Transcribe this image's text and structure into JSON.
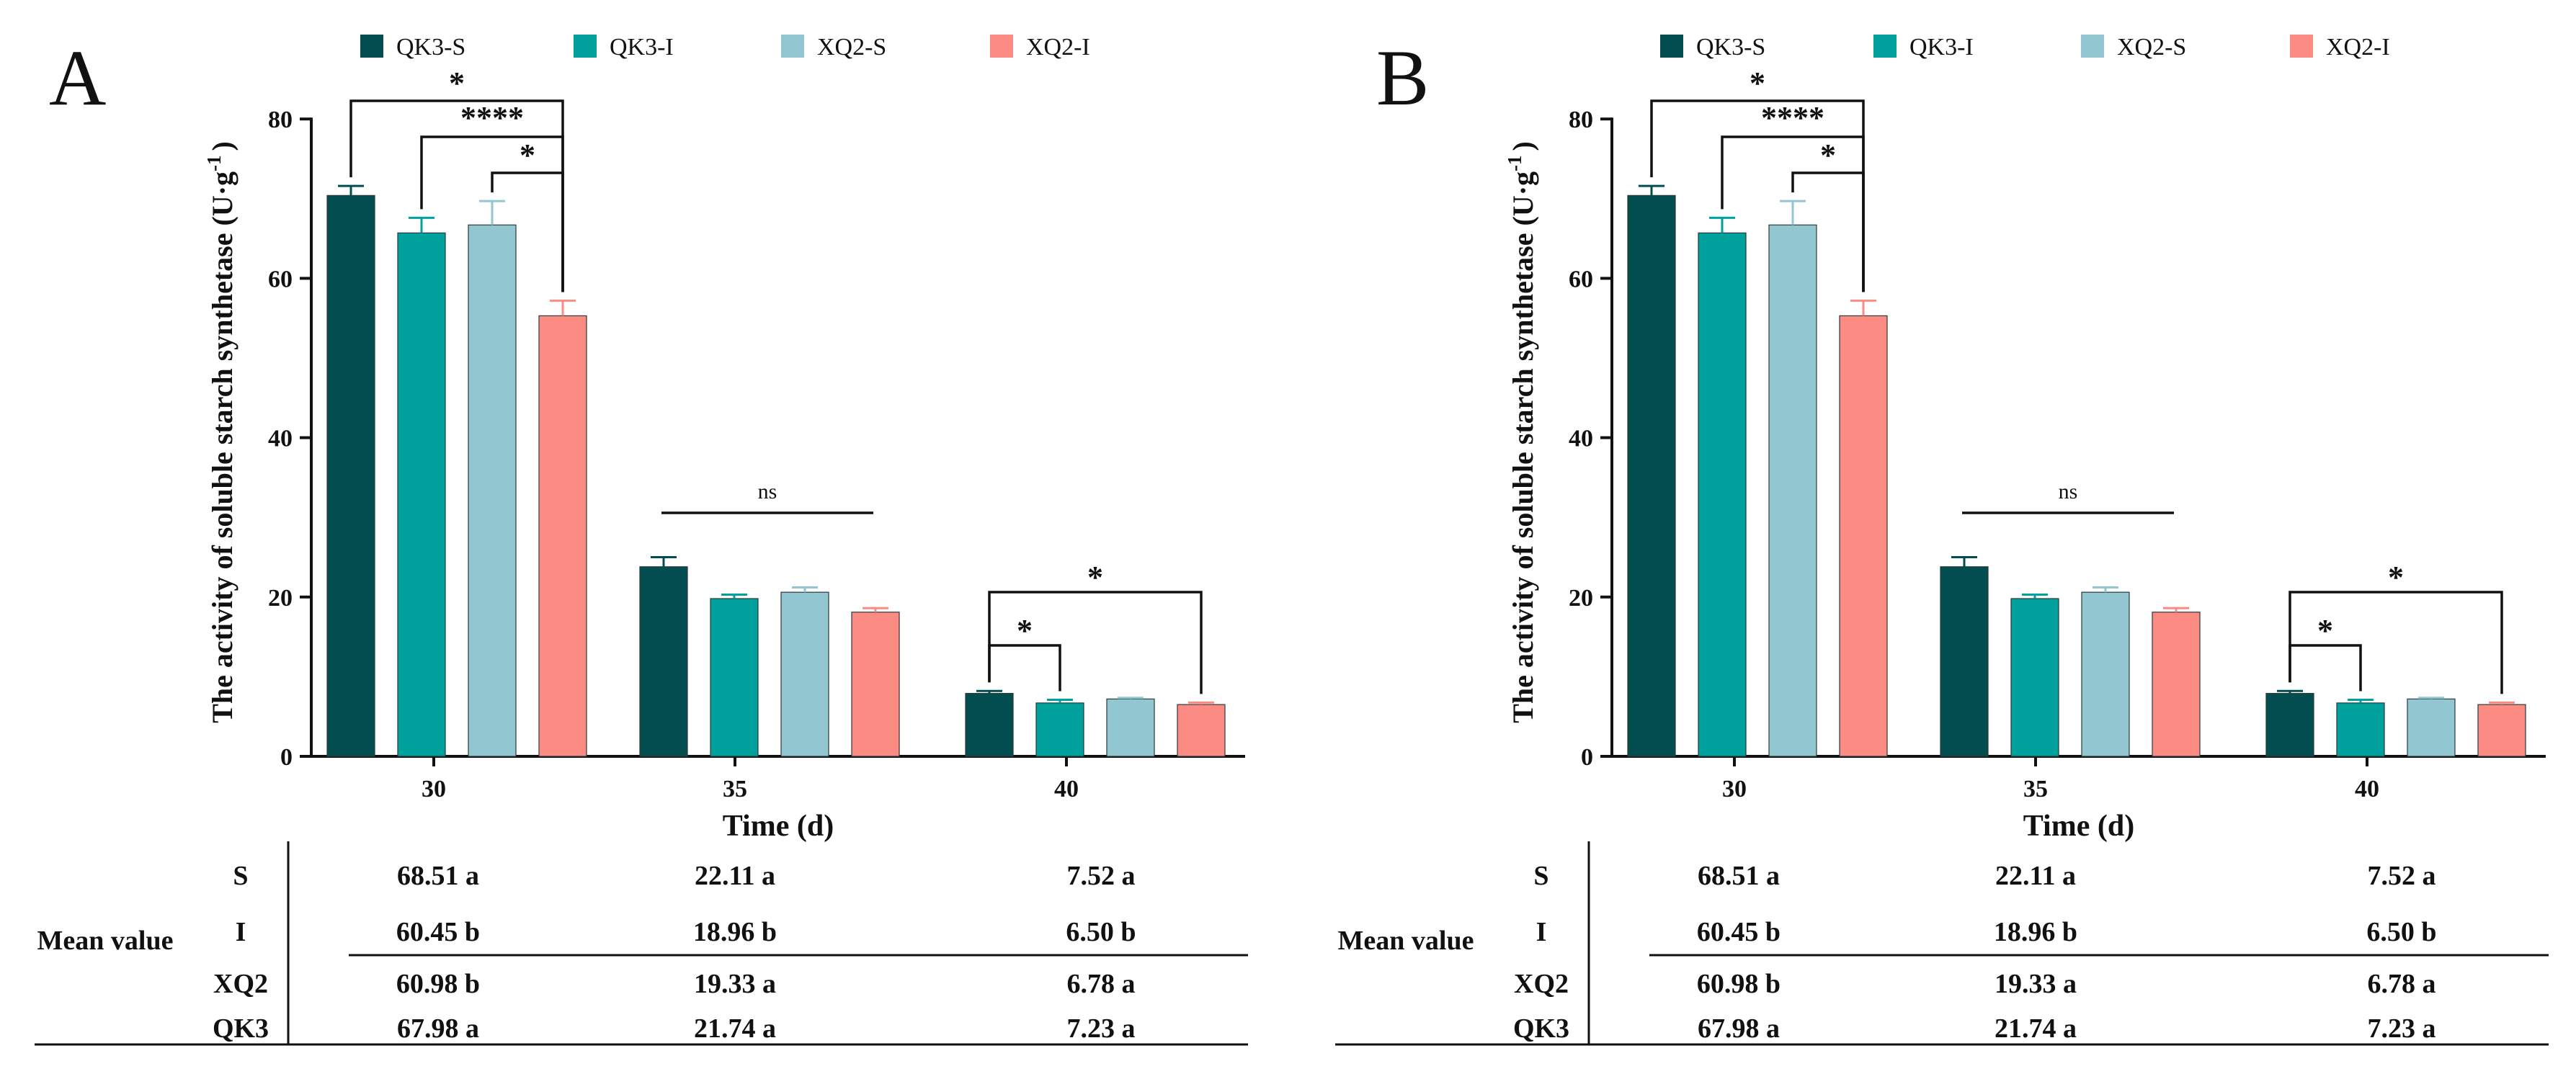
{
  "legend": {
    "items": [
      {
        "name": "QK3-S",
        "color": "#024d4f"
      },
      {
        "name": "QK3-I",
        "color": "#00a19c"
      },
      {
        "name": "XQ2-S",
        "color": "#92c7d2"
      },
      {
        "name": "XQ2-I",
        "color": "#fb8b83"
      }
    ]
  },
  "chart_data": [
    {
      "panel_label": "A",
      "type": "bar",
      "xlabel": "Time (d)",
      "ylabel": "The activity of soluble starch synthetase (U·g",
      "ylabel_sup": "-1",
      "ylabel_close": ")",
      "ylim": [
        0,
        80
      ],
      "yticks": [
        "0",
        "20",
        "40",
        "60",
        "80"
      ],
      "categories": [
        "30",
        "35",
        "40"
      ],
      "series": [
        {
          "name": "QK3-S",
          "color": "#024d4f",
          "values": [
            70.4,
            23.8,
            7.9
          ],
          "errors": [
            1.2,
            1.2,
            0.3
          ]
        },
        {
          "name": "QK3-I",
          "color": "#00a19c",
          "values": [
            65.7,
            19.8,
            6.7
          ],
          "errors": [
            1.9,
            0.5,
            0.4
          ]
        },
        {
          "name": "XQ2-S",
          "color": "#92c7d2",
          "values": [
            66.7,
            20.6,
            7.2
          ],
          "errors": [
            3.0,
            0.6,
            0.15
          ]
        },
        {
          "name": "XQ2-I",
          "color": "#fb8b83",
          "values": [
            55.3,
            18.1,
            6.5
          ],
          "errors": [
            1.9,
            0.5,
            0.25
          ]
        }
      ],
      "annotations": [
        "*",
        "****",
        "*",
        "ns",
        "*",
        "*"
      ],
      "table": {
        "label": "Mean value",
        "rows": [
          {
            "name": "S",
            "values": [
              "68.51 a",
              "22.11 a",
              "7.52 a"
            ]
          },
          {
            "name": "I",
            "values": [
              "60.45 b",
              "18.96 b",
              "6.50 b"
            ]
          },
          {
            "name": "XQ2",
            "values": [
              "60.98 b",
              "19.33 a",
              "6.78 a"
            ]
          },
          {
            "name": "QK3",
            "values": [
              "67.98 a",
              "21.74 a",
              "7.23 a"
            ]
          }
        ]
      }
    },
    {
      "panel_label": "B",
      "type": "bar",
      "xlabel": "Time (d)",
      "ylabel": "The activity of soluble starch synthetase (U·g",
      "ylabel_sup": "-1",
      "ylabel_close": ")",
      "ylim": [
        0,
        80
      ],
      "yticks": [
        "0",
        "20",
        "40",
        "60",
        "80"
      ],
      "categories": [
        "30",
        "35",
        "40"
      ],
      "series": [
        {
          "name": "QK3-S",
          "color": "#024d4f",
          "values": [
            70.4,
            23.8,
            7.9
          ],
          "errors": [
            1.2,
            1.2,
            0.3
          ]
        },
        {
          "name": "QK3-I",
          "color": "#00a19c",
          "values": [
            65.7,
            19.8,
            6.7
          ],
          "errors": [
            1.9,
            0.5,
            0.4
          ]
        },
        {
          "name": "XQ2-S",
          "color": "#92c7d2",
          "values": [
            66.7,
            20.6,
            7.2
          ],
          "errors": [
            3.0,
            0.6,
            0.15
          ]
        },
        {
          "name": "XQ2-I",
          "color": "#fb8b83",
          "values": [
            55.3,
            18.1,
            6.5
          ],
          "errors": [
            1.9,
            0.5,
            0.25
          ]
        }
      ],
      "annotations": [
        "*",
        "****",
        "*",
        "ns",
        "*",
        "*"
      ],
      "table": {
        "label": "Mean value",
        "rows": [
          {
            "name": "S",
            "values": [
              "68.51 a",
              "22.11 a",
              "7.52 a"
            ]
          },
          {
            "name": "I",
            "values": [
              "60.45 b",
              "18.96 b",
              "6.50 b"
            ]
          },
          {
            "name": "XQ2",
            "values": [
              "60.98 b",
              "19.33 a",
              "6.78 a"
            ]
          },
          {
            "name": "QK3",
            "values": [
              "67.98 a",
              "21.74 a",
              "7.23 a"
            ]
          }
        ]
      }
    }
  ]
}
